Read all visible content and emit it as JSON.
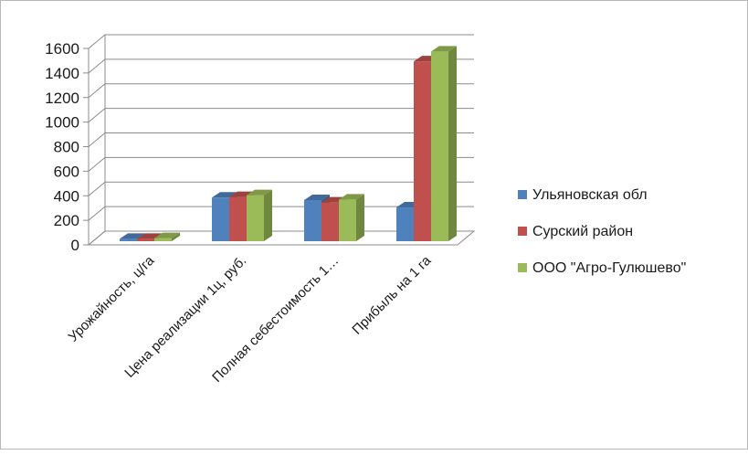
{
  "chart_data": {
    "type": "bar",
    "style": "3d-clustered-column",
    "categories": [
      "Урожайность, ц/га",
      "Цена реализации 1ц, руб.",
      "Полная себестоимость 1…",
      "Прибыль на 1 га"
    ],
    "series": [
      {
        "name": "Ульяновская обл",
        "color": "#4f81bd",
        "values": [
          20,
          355,
          335,
          275
        ]
      },
      {
        "name": "Сурский район",
        "color": "#c0504d",
        "values": [
          20,
          360,
          315,
          1465
        ]
      },
      {
        "name": "ООО \"Агро-Гулюшево\"",
        "color": "#9bbb59",
        "values": [
          25,
          375,
          340,
          1545
        ]
      }
    ],
    "title": "",
    "xlabel": "",
    "ylabel": "",
    "ylim": [
      0,
      1600
    ],
    "yticks": [
      "0",
      "200",
      "400",
      "600",
      "800",
      "1000",
      "1200",
      "1400",
      "1600"
    ],
    "grid": true,
    "legend_position": "right"
  }
}
